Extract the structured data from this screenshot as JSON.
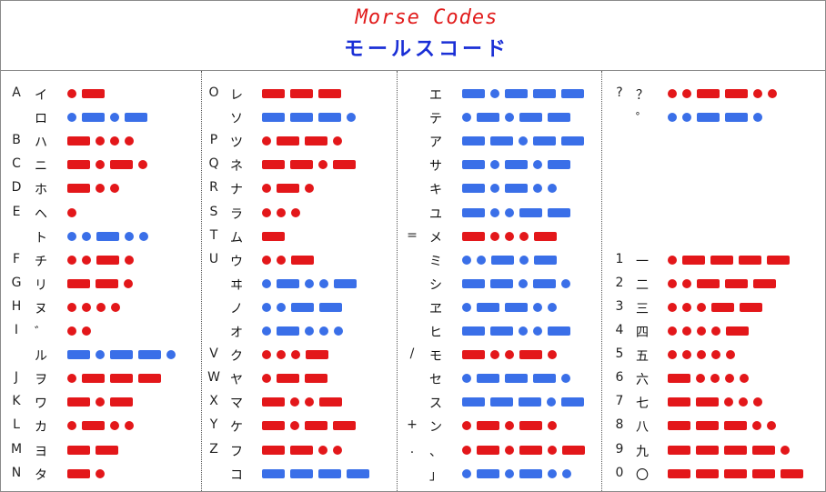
{
  "title": {
    "en": "Morse Codes",
    "jp": "モールスコード"
  },
  "colors": {
    "title_en": "#e11b1b",
    "title_jp": "#1a2fd6",
    "latin_code": "#e3171a",
    "kana_code": "#3a6fe8",
    "frame": "#8a8a8a",
    "divider": "#555555"
  },
  "columns": [
    [
      {
        "lat": "A",
        "kana": "イ",
        "code": ".-"
      },
      {
        "lat": "",
        "kana": "ロ",
        "code": ".-.-"
      },
      {
        "lat": "B",
        "kana": "ハ",
        "code": "-..."
      },
      {
        "lat": "C",
        "kana": "ニ",
        "code": "-.-."
      },
      {
        "lat": "D",
        "kana": "ホ",
        "code": "-.."
      },
      {
        "lat": "E",
        "kana": "ヘ",
        "code": "."
      },
      {
        "lat": "",
        "kana": "ト",
        "code": "..-.."
      },
      {
        "lat": "F",
        "kana": "チ",
        "code": "..-."
      },
      {
        "lat": "G",
        "kana": "リ",
        "code": "--."
      },
      {
        "lat": "H",
        "kana": "ヌ",
        "code": "...."
      },
      {
        "lat": "I",
        "kana": "゛",
        "code": ".."
      },
      {
        "lat": "",
        "kana": "ル",
        "code": "-.--."
      },
      {
        "lat": "J",
        "kana": "ヲ",
        "code": ".---"
      },
      {
        "lat": "K",
        "kana": "ワ",
        "code": "-.-"
      },
      {
        "lat": "L",
        "kana": "カ",
        "code": ".-.."
      },
      {
        "lat": "M",
        "kana": "ヨ",
        "code": "--"
      },
      {
        "lat": "N",
        "kana": "タ",
        "code": "-."
      }
    ],
    [
      {
        "lat": "O",
        "kana": "レ",
        "code": "---"
      },
      {
        "lat": "",
        "kana": "ソ",
        "code": "---."
      },
      {
        "lat": "P",
        "kana": "ツ",
        "code": ".--."
      },
      {
        "lat": "Q",
        "kana": "ネ",
        "code": "--.-"
      },
      {
        "lat": "R",
        "kana": "ナ",
        "code": ".-."
      },
      {
        "lat": "S",
        "kana": "ラ",
        "code": "..."
      },
      {
        "lat": "T",
        "kana": "ム",
        "code": "-"
      },
      {
        "lat": "U",
        "kana": "ウ",
        "code": "..-"
      },
      {
        "lat": "",
        "kana": "ヰ",
        "code": ".-..-"
      },
      {
        "lat": "",
        "kana": "ノ",
        "code": "..--"
      },
      {
        "lat": "",
        "kana": "オ",
        "code": ".-..."
      },
      {
        "lat": "V",
        "kana": "ク",
        "code": "...-"
      },
      {
        "lat": "W",
        "kana": "ヤ",
        "code": ".--"
      },
      {
        "lat": "X",
        "kana": "マ",
        "code": "-..-"
      },
      {
        "lat": "Y",
        "kana": "ケ",
        "code": "-.--"
      },
      {
        "lat": "Z",
        "kana": "フ",
        "code": "--.."
      },
      {
        "lat": "",
        "kana": "コ",
        "code": "----"
      }
    ],
    [
      {
        "lat": "",
        "kana": "エ",
        "code": "-.---"
      },
      {
        "lat": "",
        "kana": "テ",
        "code": ".-.--"
      },
      {
        "lat": "",
        "kana": "ア",
        "code": "--.--"
      },
      {
        "lat": "",
        "kana": "サ",
        "code": "-.-.-"
      },
      {
        "lat": "",
        "kana": "キ",
        "code": "-.-.."
      },
      {
        "lat": "",
        "kana": "ユ",
        "code": "-..--"
      },
      {
        "lat": "=",
        "kana": "メ",
        "code": "-...-"
      },
      {
        "lat": "",
        "kana": "ミ",
        "code": "..-.-"
      },
      {
        "lat": "",
        "kana": "シ",
        "code": "--.-."
      },
      {
        "lat": "",
        "kana": "ヱ",
        "code": ".--.."
      },
      {
        "lat": "",
        "kana": "ヒ",
        "code": "--..-"
      },
      {
        "lat": "/",
        "kana": "モ",
        "code": "-..-."
      },
      {
        "lat": "",
        "kana": "セ",
        "code": ".---."
      },
      {
        "lat": "",
        "kana": "ス",
        "code": "---.-"
      },
      {
        "lat": "+",
        "kana": "ン",
        "code": ".-.-."
      },
      {
        "lat": ".",
        "kana": "、",
        "code": ".-.-.-"
      },
      {
        "lat": "",
        "kana": "」",
        "code": ".-.-.."
      }
    ],
    [
      {
        "lat": "?",
        "kana": "？",
        "code": "..--.."
      },
      {
        "lat": "",
        "kana": "゜",
        "code": "..--."
      },
      {
        "lat": "",
        "kana": "",
        "code": ""
      },
      {
        "lat": "",
        "kana": "",
        "code": ""
      },
      {
        "lat": "",
        "kana": "",
        "code": ""
      },
      {
        "lat": "",
        "kana": "",
        "code": ""
      },
      {
        "lat": "",
        "kana": "",
        "code": ""
      },
      {
        "lat": "1",
        "kana": "一",
        "code": ".----"
      },
      {
        "lat": "2",
        "kana": "二",
        "code": "..---"
      },
      {
        "lat": "3",
        "kana": "三",
        "code": "...--"
      },
      {
        "lat": "4",
        "kana": "四",
        "code": "....-"
      },
      {
        "lat": "5",
        "kana": "五",
        "code": "....."
      },
      {
        "lat": "6",
        "kana": "六",
        "code": "-...."
      },
      {
        "lat": "7",
        "kana": "七",
        "code": "--..."
      },
      {
        "lat": "8",
        "kana": "八",
        "code": "---.."
      },
      {
        "lat": "9",
        "kana": "九",
        "code": "----."
      },
      {
        "lat": "0",
        "kana": "〇",
        "code": "-----"
      }
    ]
  ]
}
